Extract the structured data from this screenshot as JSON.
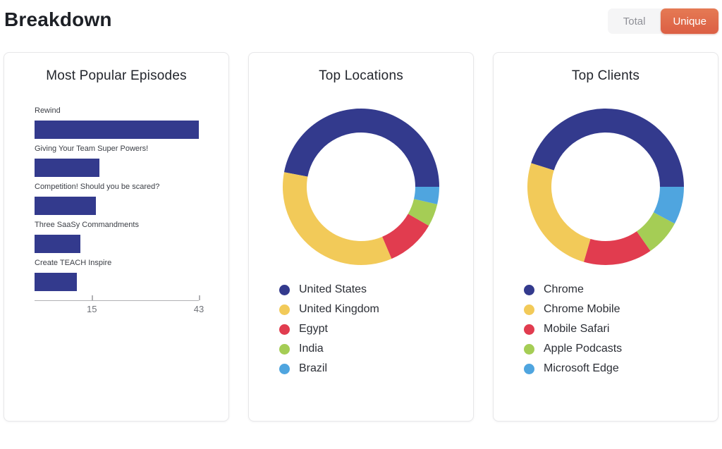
{
  "page": {
    "title": "Breakdown"
  },
  "toggle": {
    "options": [
      {
        "label": "Total",
        "active": false
      },
      {
        "label": "Unique",
        "active": true
      }
    ],
    "active_color": "#df6a4c"
  },
  "colors": {
    "indigo": "#333a8d",
    "yellow": "#f2ca59",
    "red": "#e13c4f",
    "green": "#a5cd55",
    "blue": "#4fa5df",
    "accent_orange": "#df6a4c"
  },
  "chart_data": [
    {
      "type": "bar",
      "orientation": "horizontal",
      "title": "Most Popular Episodes",
      "categories": [
        "Rewind",
        "Giving Your Team Super Powers!",
        "Competition! Should you be scared?",
        "Three SaaSy Commandments",
        "Create TEACH Inspire"
      ],
      "values": [
        43,
        17,
        16,
        12,
        11
      ],
      "xlim": [
        0,
        43
      ],
      "xticks": [
        15,
        43
      ],
      "bar_color": "#333a8d",
      "grid": false
    },
    {
      "type": "donut",
      "title": "Top Locations",
      "categories": [
        "United States",
        "United Kingdom",
        "Egypt",
        "India",
        "Brazil"
      ],
      "values": [
        47,
        34.4,
        10.3,
        4.7,
        3.6
      ],
      "unit": "percent_of_total_estimated",
      "colors": [
        "#333a8d",
        "#f2ca59",
        "#e13c4f",
        "#a5cd55",
        "#4fa5df"
      ],
      "start_angle_deg": 0,
      "direction": "counterclockwise",
      "inner_radius_ratio": 0.69,
      "legend_position": "bottom-left"
    },
    {
      "type": "donut",
      "title": "Top Clients",
      "categories": [
        "Chrome",
        "Chrome Mobile",
        "Mobile Safari",
        "Apple Podcasts",
        "Microsoft Edge"
      ],
      "values": [
        45.1,
        25.4,
        14.2,
        7.5,
        7.8
      ],
      "unit": "percent_of_total_estimated",
      "colors": [
        "#333a8d",
        "#f2ca59",
        "#e13c4f",
        "#a5cd55",
        "#4fa5df"
      ],
      "start_angle_deg": 0,
      "direction": "counterclockwise",
      "inner_radius_ratio": 0.69,
      "legend_position": "bottom-left"
    }
  ]
}
